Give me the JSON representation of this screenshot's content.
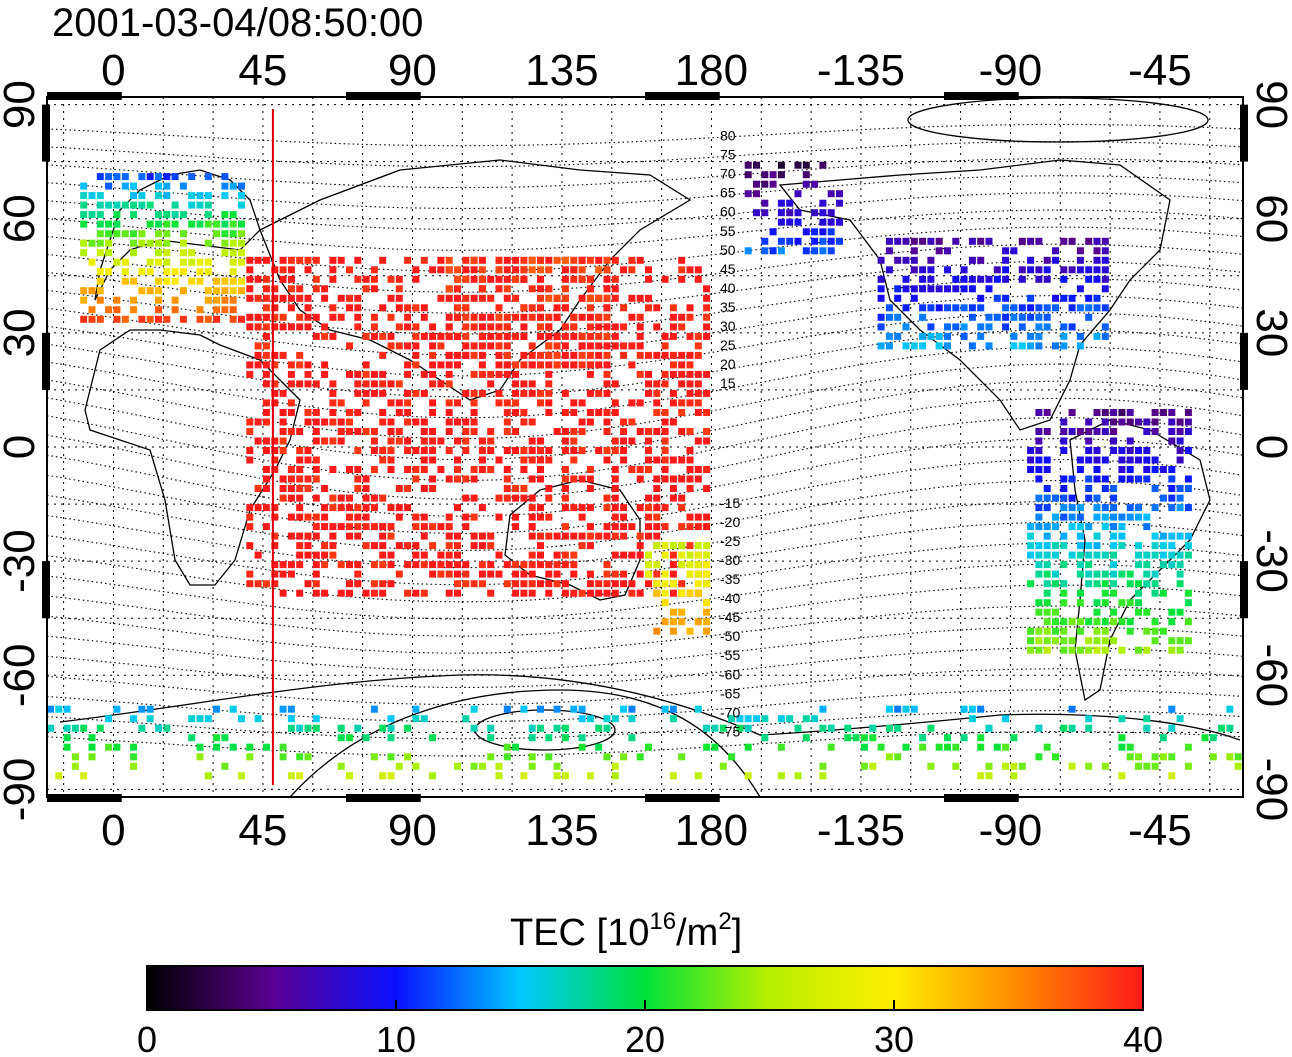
{
  "title": "2001-03-04/08:50:00",
  "colorbar": {
    "label_main": "TEC  [10",
    "label_sup1": "16",
    "label_mid": "/m",
    "label_sup2": "2",
    "label_end": "]",
    "ticks": [
      "0",
      "10",
      "20",
      "30",
      "40"
    ],
    "range": [
      0,
      40
    ],
    "stops": [
      "#000000",
      "#5a0090",
      "#0a10ff",
      "#00c8ff",
      "#00e23a",
      "#b8f000",
      "#ffee00",
      "#ff8800",
      "#ff1a1a"
    ]
  },
  "map": {
    "lon_ticks": [
      "0",
      "45",
      "90",
      "135",
      "180",
      "-135",
      "-90",
      "-45"
    ],
    "lat_ticks": [
      "90",
      "60",
      "30",
      "0",
      "-30",
      "-60",
      "-90"
    ],
    "lon_range": [
      -20,
      340
    ],
    "lat_range": [
      -92,
      92
    ],
    "marker_lon": 48,
    "marker_color": "#e00000",
    "mag_labels_north": [
      "80",
      "75",
      "70",
      "65",
      "60",
      "55",
      "50",
      "45",
      "40",
      "35",
      "30",
      "25",
      "20",
      "15"
    ],
    "mag_labels_south": [
      "-15",
      "-20",
      "-25",
      "-30",
      "-35",
      "-40",
      "-45",
      "-50",
      "-55",
      "-60",
      "-65",
      "-70",
      "-75"
    ]
  },
  "chart_data": {
    "type": "heatmap",
    "title": "2001-03-04/08:50:00",
    "value_label": "TEC [10^16/m^2]",
    "vmin": 0,
    "vmax": 40,
    "regions": [
      {
        "lon": [
          -10,
          40
        ],
        "lat": [
          32,
          72
        ],
        "tec": [
          10,
          38
        ]
      },
      {
        "lon": [
          40,
          180
        ],
        "lat": [
          -40,
          50
        ],
        "tec": [
          40,
          40
        ]
      },
      {
        "lon": [
          100,
          150
        ],
        "lat": [
          20,
          50
        ],
        "tec": [
          38,
          40
        ]
      },
      {
        "lon": [
          -130,
          -60
        ],
        "lat": [
          25,
          55
        ],
        "tec": [
          5,
          14
        ]
      },
      {
        "lon": [
          -170,
          -140
        ],
        "lat": [
          50,
          75
        ],
        "tec": [
          2,
          12
        ]
      },
      {
        "lon": [
          -85,
          -35
        ],
        "lat": [
          -55,
          10
        ],
        "tec": [
          4,
          24
        ]
      },
      {
        "lon": [
          -180,
          180
        ],
        "lat": [
          -88,
          -70
        ],
        "tec": [
          14,
          26
        ]
      },
      {
        "lon": [
          160,
          180
        ],
        "lat": [
          -50,
          -25
        ],
        "tec": [
          26,
          34
        ]
      }
    ]
  }
}
